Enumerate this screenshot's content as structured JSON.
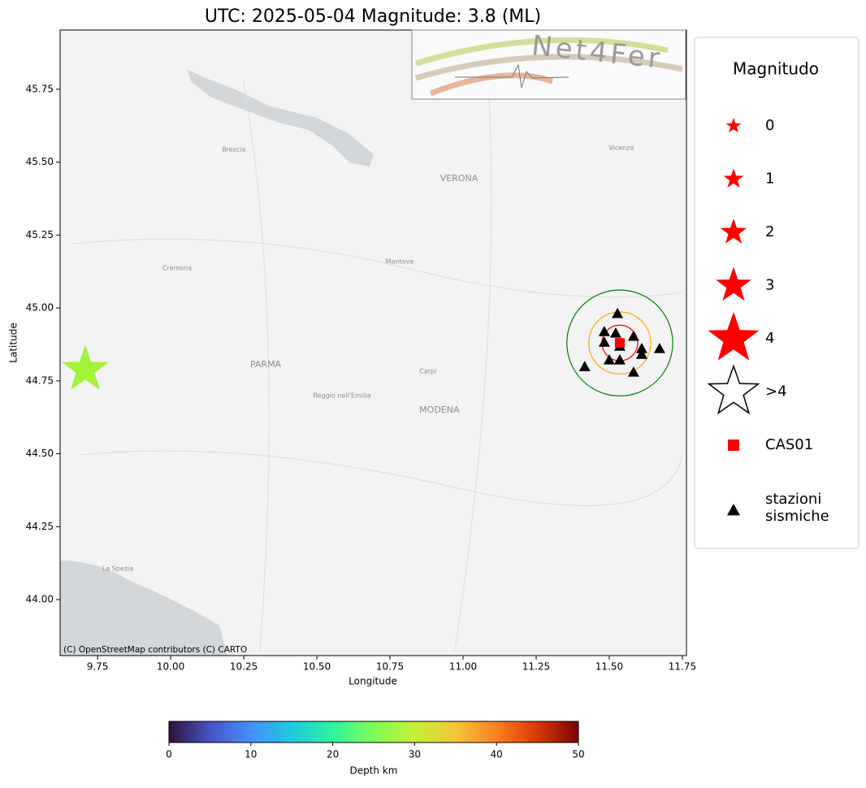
{
  "chart_data": {
    "type": "scatter",
    "title": "UTC: 2025-05-04 Magnitude: 3.8 (ML)",
    "x_label": "Longitude",
    "y_label": "Latitude",
    "xlim": [
      9.622,
      11.764
    ],
    "ylim": [
      43.808,
      45.953
    ],
    "xticks": [
      9.75,
      {
        "value": 10,
        "label": "10.00"
      },
      10.25,
      {
        "value": 10.5,
        "label": "10.50"
      },
      10.75,
      {
        "value": 11,
        "label": "11.00"
      },
      11.25,
      {
        "value": 11.5,
        "label": "11.50"
      },
      11.75
    ],
    "yticks": [
      {
        "value": 44,
        "label": "44.00"
      },
      44.25,
      {
        "value": 44.5,
        "label": "44.50"
      },
      44.75,
      {
        "value": 45,
        "label": "45.00"
      },
      45.25,
      {
        "value": 45.5,
        "label": "45.50"
      },
      45.75
    ],
    "event": {
      "lon": 9.708,
      "lat": 44.788,
      "magnitude": 3.8,
      "color": "#a4f23b"
    },
    "station_cas01": {
      "name": "CAS01",
      "lon": 11.536,
      "lat": 44.88,
      "color": "#ff0000"
    },
    "stations": {
      "name": "stazioni sismiche",
      "lon": [
        11.528,
        11.483,
        11.522,
        11.583,
        11.483,
        11.611,
        11.672,
        11.536,
        11.5,
        11.536,
        11.611,
        11.416,
        11.583
      ],
      "lat": [
        44.981,
        44.919,
        44.914,
        44.903,
        44.883,
        44.861,
        44.861,
        44.869,
        44.822,
        44.822,
        44.841,
        44.799,
        44.78
      ]
    },
    "circles": [
      {
        "color": "#ff0000",
        "radius": 0.061
      },
      {
        "color": "#ffa500",
        "radius": 0.106
      },
      {
        "color": "#008000",
        "radius": 0.181
      }
    ],
    "places": [
      {
        "name": "VERONA",
        "lon": 10.986,
        "lat": 45.443
      },
      {
        "name": "PARMA",
        "lon": 10.325,
        "lat": 44.805
      },
      {
        "name": "MODENA",
        "lon": 10.919,
        "lat": 44.649
      },
      {
        "name": "Cremona",
        "lon": 10.022,
        "lat": 45.137
      },
      {
        "name": "Brescia",
        "lon": 10.216,
        "lat": 45.543
      },
      {
        "name": "Mantova",
        "lon": 10.783,
        "lat": 45.159
      },
      {
        "name": "Reggio nell'Emilia",
        "lon": 10.586,
        "lat": 44.699
      },
      {
        "name": "Vicenza",
        "lon": 11.541,
        "lat": 45.549
      },
      {
        "name": "Carpi",
        "lon": 10.88,
        "lat": 44.783
      },
      {
        "name": "La Spezia",
        "lon": 9.819,
        "lat": 44.106
      }
    ],
    "attribution": "(C) OpenStreetMap contributors (C) CARTO",
    "logo": "Net4Fer",
    "legend": {
      "title": "Magnitudo",
      "entries": [
        "0",
        "1",
        "2",
        "3",
        "4",
        ">4"
      ]
    },
    "colorbar": {
      "label": "Depth km",
      "lim": [
        0,
        50
      ],
      "ticks": [
        0,
        10,
        20,
        30,
        40,
        50
      ]
    }
  }
}
